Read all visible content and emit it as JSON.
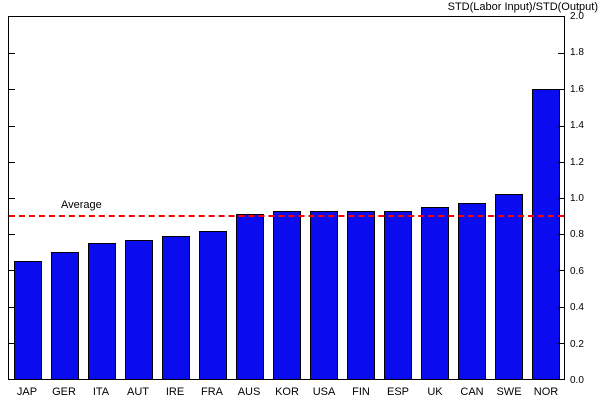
{
  "chart_data": {
    "type": "bar",
    "title": "STD(Labor Input)/STD(Output)",
    "categories": [
      "JAP",
      "GER",
      "ITA",
      "AUT",
      "IRE",
      "FRA",
      "AUS",
      "KOR",
      "USA",
      "FIN",
      "ESP",
      "UK",
      "CAN",
      "SWE",
      "NOR"
    ],
    "values": [
      0.65,
      0.7,
      0.75,
      0.77,
      0.79,
      0.82,
      0.91,
      0.93,
      0.93,
      0.93,
      0.93,
      0.95,
      0.97,
      1.02,
      1.6
    ],
    "xlabel": "",
    "ylabel": "",
    "ylim": [
      0,
      2.0
    ],
    "ytick_step": 0.2,
    "ytick_labels": [
      "0.0",
      "0.2",
      "0.4",
      "0.6",
      "0.8",
      "1.0",
      "1.2",
      "1.4",
      "1.6",
      "1.8",
      "2.0"
    ],
    "yaxis_side": "right",
    "grid": false,
    "legend_position": "none",
    "bar_color": "#0b0bef",
    "bar_edge_color": "#000000",
    "average_line": {
      "label": "Average",
      "value": 0.9,
      "color": "#ff0000",
      "style": "dashed"
    }
  }
}
